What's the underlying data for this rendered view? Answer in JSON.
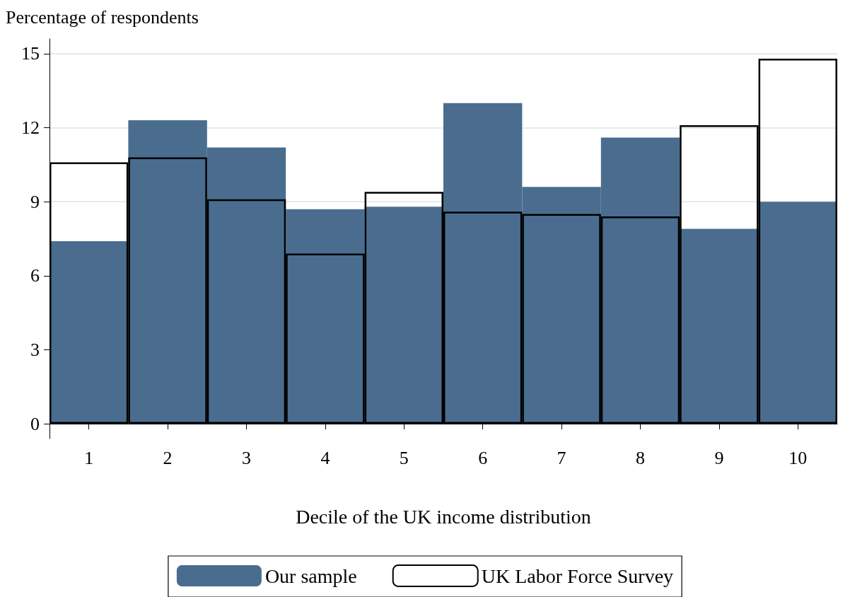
{
  "chart_data": {
    "type": "bar",
    "xlabel": "Decile of the UK income distribution",
    "ylabel": "Percentage of respondents",
    "categories": [
      "1",
      "2",
      "3",
      "4",
      "5",
      "6",
      "7",
      "8",
      "9",
      "10"
    ],
    "series": [
      {
        "name": "Our sample",
        "color": "#4a6d8f",
        "values": [
          7.4,
          12.3,
          11.2,
          8.7,
          8.8,
          13.0,
          9.6,
          11.6,
          7.9,
          9.0
        ]
      },
      {
        "name": "UK Labor Force Survey",
        "color": "#000000",
        "values": [
          10.6,
          10.8,
          9.1,
          6.9,
          9.4,
          8.6,
          8.5,
          8.4,
          12.1,
          14.8
        ]
      }
    ],
    "ylim": [
      -0.6,
      15.6
    ],
    "yticks": [
      0,
      3,
      6,
      9,
      12,
      15
    ],
    "grid": "y",
    "legend": "bottom"
  }
}
